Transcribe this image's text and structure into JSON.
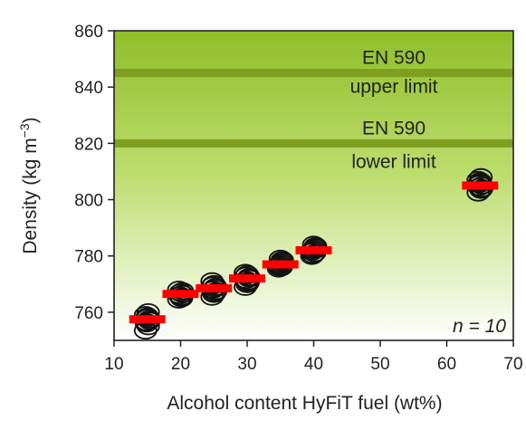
{
  "chart_data": {
    "type": "scatter",
    "title": "",
    "xlabel": "Alcohol content HyFiT fuel (wt%)",
    "ylabel_main": "Density (kg m",
    "ylabel_sup": "−3",
    "ylabel_end": ")",
    "xlim": [
      10,
      70
    ],
    "ylim": [
      750,
      860
    ],
    "xticks": [
      10,
      20,
      30,
      40,
      50,
      60,
      70
    ],
    "yticks": [
      760,
      780,
      800,
      820,
      840,
      860
    ],
    "n_label": "n = 10",
    "limits": [
      {
        "value": 845,
        "line1": "EN 590",
        "line2": "upper limit"
      },
      {
        "value": 820,
        "line1": "EN 590",
        "line2": "lower limit"
      }
    ],
    "colors": {
      "band_top": "#8fbf2a",
      "band_bottom": "#ffffff",
      "limit_line": "#7d9e1f",
      "marker": "#111111",
      "mean_bar": "#ff0000"
    },
    "series": [
      {
        "name": "",
        "x": 15,
        "mean": 757.5,
        "values": [
          753.5,
          755.0,
          756.5,
          757.5,
          758.0,
          759.0,
          760.0,
          757.0,
          756.0,
          758.5
        ]
      },
      {
        "name": "",
        "x": 20,
        "mean": 766.5,
        "values": [
          764.5,
          765.5,
          766.0,
          766.5,
          767.0,
          768.0,
          765.0,
          767.5,
          766.0,
          767.0
        ]
      },
      {
        "name": "",
        "x": 25,
        "mean": 768.5,
        "values": [
          765.5,
          767.0,
          768.0,
          769.0,
          770.0,
          771.0,
          768.5,
          767.5,
          769.5,
          766.5
        ]
      },
      {
        "name": "",
        "x": 30,
        "mean": 772.0,
        "values": [
          769.0,
          770.5,
          771.5,
          772.5,
          773.5,
          774.0,
          771.0,
          772.0,
          773.0,
          770.0
        ]
      },
      {
        "name": "",
        "x": 35,
        "mean": 777.0,
        "values": [
          775.5,
          776.0,
          777.0,
          778.0,
          779.0,
          776.5,
          777.5,
          778.5,
          776.0,
          777.0
        ]
      },
      {
        "name": "",
        "x": 40,
        "mean": 782.0,
        "values": [
          780.0,
          781.0,
          782.0,
          783.0,
          784.0,
          781.5,
          782.5,
          783.5,
          780.5,
          782.0
        ]
      },
      {
        "name": "",
        "x": 65,
        "mean": 805.0,
        "values": [
          802.5,
          803.5,
          804.5,
          805.0,
          806.0,
          807.0,
          808.0,
          804.0,
          805.5,
          806.5
        ]
      }
    ]
  }
}
